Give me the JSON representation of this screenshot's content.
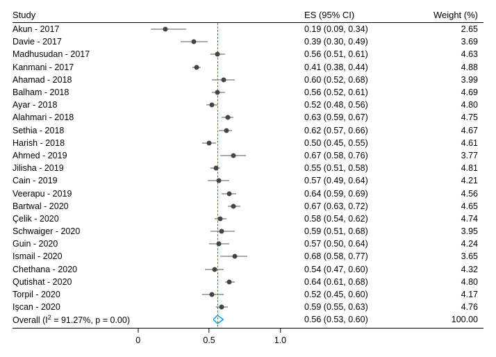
{
  "header": {
    "study": "Study",
    "es": "ES (95% CI)",
    "weight": "Weight (%)"
  },
  "axis": {
    "min": -0.15,
    "max": 1.12,
    "ticks": [
      {
        "value": 0,
        "label": "0"
      },
      {
        "value": 0.5,
        "label": "0.5"
      },
      {
        "value": 1.0,
        "label": "1.0"
      }
    ],
    "ref_line_value": 0.56,
    "ref_line_color": "#ff3030"
  },
  "styling": {
    "point_color": "#444444",
    "ci_color": "#555555",
    "diamond_stroke": "#0099dd",
    "font_family": "Arial",
    "font_size_pt": 10,
    "background": "#ffffff"
  },
  "rows": [
    {
      "study": "Akun - 2017",
      "es": 0.19,
      "lo": 0.09,
      "hi": 0.34,
      "weight": "2.65"
    },
    {
      "study": "Davie - 2017",
      "es": 0.39,
      "lo": 0.3,
      "hi": 0.49,
      "weight": "3.69"
    },
    {
      "study": "Madhusudan - 2017",
      "es": 0.56,
      "lo": 0.51,
      "hi": 0.61,
      "weight": "4.63"
    },
    {
      "study": "Kanmani - 2017",
      "es": 0.41,
      "lo": 0.38,
      "hi": 0.44,
      "weight": "4.88"
    },
    {
      "study": "Ahamad - 2018",
      "es": 0.6,
      "lo": 0.52,
      "hi": 0.68,
      "weight": "3.99"
    },
    {
      "study": "Balham - 2018",
      "es": 0.56,
      "lo": 0.52,
      "hi": 0.61,
      "weight": "4.69"
    },
    {
      "study": "Ayar - 2018",
      "es": 0.52,
      "lo": 0.48,
      "hi": 0.56,
      "weight": "4.80"
    },
    {
      "study": "Alahmari - 2018",
      "es": 0.63,
      "lo": 0.59,
      "hi": 0.67,
      "weight": "4.75"
    },
    {
      "study": "Sethia - 2018",
      "es": 0.62,
      "lo": 0.57,
      "hi": 0.66,
      "weight": "4.67"
    },
    {
      "study": "Harish - 2018",
      "es": 0.5,
      "lo": 0.45,
      "hi": 0.55,
      "weight": "4.61"
    },
    {
      "study": "Ahmed - 2019",
      "es": 0.67,
      "lo": 0.58,
      "hi": 0.76,
      "weight": "3.77"
    },
    {
      "study": "Jilisha - 2019",
      "es": 0.55,
      "lo": 0.51,
      "hi": 0.58,
      "weight": "4.81"
    },
    {
      "study": "Cain - 2019",
      "es": 0.57,
      "lo": 0.49,
      "hi": 0.64,
      "weight": "4.21"
    },
    {
      "study": "Veerapu - 2019",
      "es": 0.64,
      "lo": 0.59,
      "hi": 0.69,
      "weight": "4.56"
    },
    {
      "study": "Bartwal - 2020",
      "es": 0.67,
      "lo": 0.63,
      "hi": 0.72,
      "weight": "4.65"
    },
    {
      "study": "Çelik - 2020",
      "es": 0.58,
      "lo": 0.54,
      "hi": 0.62,
      "weight": "4.74"
    },
    {
      "study": "Schwaiger - 2020",
      "es": 0.59,
      "lo": 0.51,
      "hi": 0.68,
      "weight": "3.95"
    },
    {
      "study": "Guin - 2020",
      "es": 0.57,
      "lo": 0.5,
      "hi": 0.64,
      "weight": "4.24"
    },
    {
      "study": "Ismail - 2020",
      "es": 0.68,
      "lo": 0.58,
      "hi": 0.77,
      "weight": "3.65"
    },
    {
      "study": "Chethana - 2020",
      "es": 0.54,
      "lo": 0.47,
      "hi": 0.6,
      "weight": "4.32"
    },
    {
      "study": "Qutishat - 2020",
      "es": 0.64,
      "lo": 0.61,
      "hi": 0.68,
      "weight": "4.80"
    },
    {
      "study": "Torpil - 2020",
      "es": 0.52,
      "lo": 0.45,
      "hi": 0.6,
      "weight": "4.17"
    },
    {
      "study": "Işcan - 2020",
      "es": 0.59,
      "lo": 0.55,
      "hi": 0.63,
      "weight": "4.76"
    }
  ],
  "overall": {
    "label_prefix": "Overall (I",
    "label_sup": "2",
    "label_suffix": " = 91.27%, p = 0.00)",
    "es": 0.56,
    "lo": 0.53,
    "hi": 0.6,
    "weight": "100.00"
  }
}
